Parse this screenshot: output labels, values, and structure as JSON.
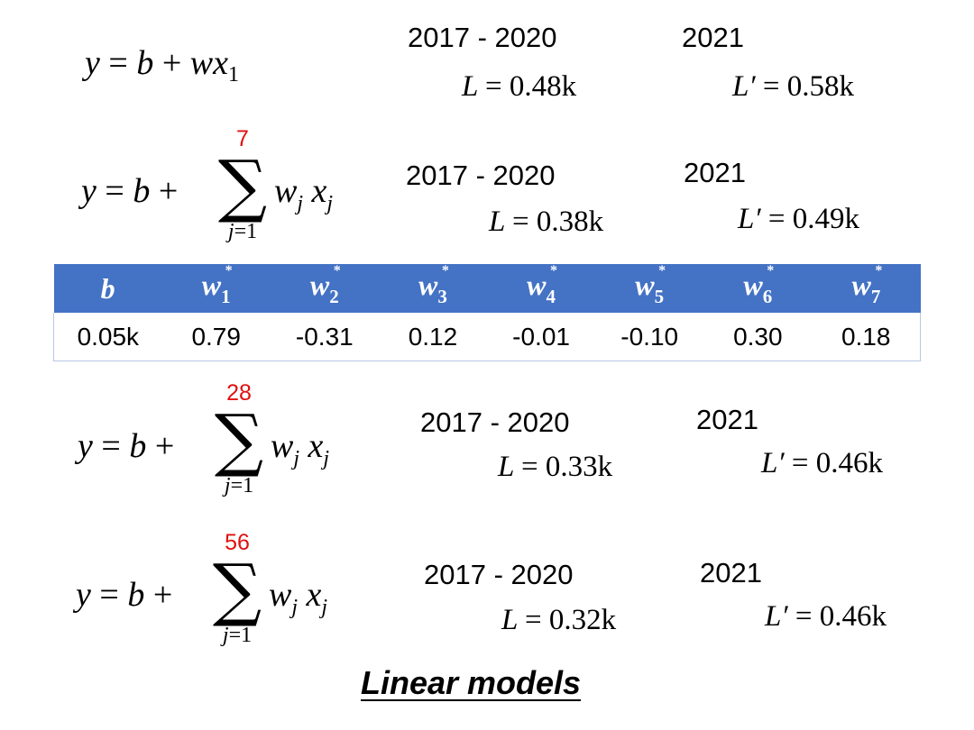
{
  "rows": [
    {
      "range_label": "2017 - 2020",
      "year_label": "2021",
      "train_loss": "0.48k",
      "test_loss": "0.58k"
    },
    {
      "upper_limit": "7",
      "range_label": "2017 - 2020",
      "year_label": "2021",
      "train_loss": "0.38k",
      "test_loss": "0.49k"
    },
    {
      "upper_limit": "28",
      "range_label": "2017 - 2020",
      "year_label": "2021",
      "train_loss": "0.33k",
      "test_loss": "0.46k"
    },
    {
      "upper_limit": "56",
      "range_label": "2017 - 2020",
      "year_label": "2021",
      "train_loss": "0.32k",
      "test_loss": "0.46k"
    }
  ],
  "table": {
    "headers": [
      {
        "sym": "b",
        "sub": ""
      },
      {
        "sym": "w",
        "sub": "1"
      },
      {
        "sym": "w",
        "sub": "2"
      },
      {
        "sym": "w",
        "sub": "3"
      },
      {
        "sym": "w",
        "sub": "4"
      },
      {
        "sym": "w",
        "sub": "5"
      },
      {
        "sym": "w",
        "sub": "6"
      },
      {
        "sym": "w",
        "sub": "7"
      }
    ],
    "values": [
      "0.05k",
      "0.79",
      "-0.31",
      "0.12",
      "-0.01",
      "-0.10",
      "0.30",
      "0.18"
    ]
  },
  "caption": "Linear models",
  "colors": {
    "header_bg": "#4472c4",
    "limit_red": "#e01010"
  }
}
